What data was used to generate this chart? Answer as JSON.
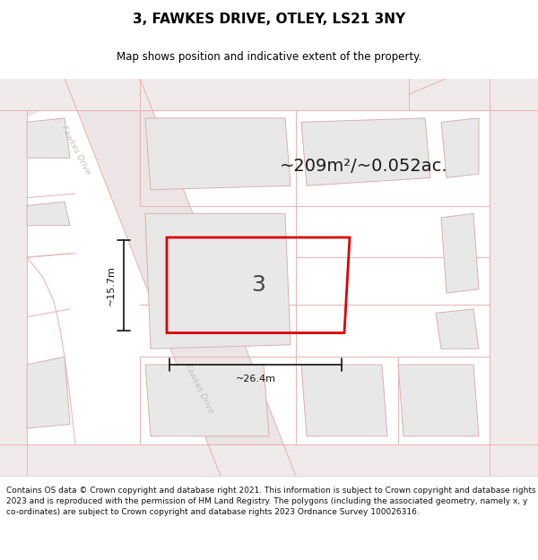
{
  "title": "3, FAWKES DRIVE, OTLEY, LS21 3NY",
  "subtitle": "Map shows position and indicative extent of the property.",
  "area_text": "~209m²/~0.052ac.",
  "dim_width": "~26.4m",
  "dim_height": "~15.7m",
  "plot_number": "3",
  "copyright_text": "Contains OS data © Crown copyright and database right 2021. This information is subject to Crown copyright and database rights 2023 and is reproduced with the permission of HM Land Registry. The polygons (including the associated geometry, namely x, y co-ordinates) are subject to Crown copyright and database rights 2023 Ordnance Survey 100026316.",
  "bg_color": "#ffffff",
  "map_bg": "#f9f6f6",
  "road_line_color": "#e8b8b8",
  "building_fill": "#e8e8e8",
  "building_edge": "#d8b0b0",
  "plot_edge": "#dd0000",
  "title_fs": 11,
  "subtitle_fs": 8.5,
  "area_fs": 14,
  "dim_fs": 8,
  "plot_label_fs": 18,
  "copy_fs": 6.5,
  "fawkes_label_color": "#b0b0b0",
  "dim_line_color": "#111111"
}
